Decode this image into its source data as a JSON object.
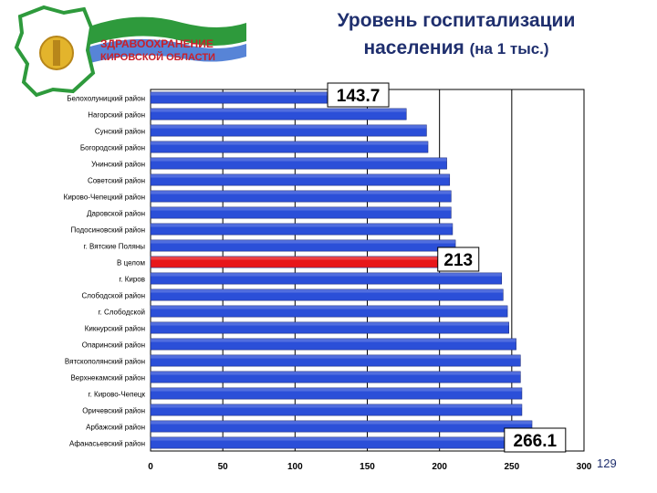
{
  "header": {
    "logo_line1": "ЗДРАВООХРАНЕНИЕ",
    "logo_line2": "КИРОВСКОЙ ОБЛАСТИ",
    "title_line1": "Уровень госпитализации",
    "title_line2": "населения",
    "title_unit": "(на 1 тыс.)"
  },
  "page_number": "129",
  "colors": {
    "bar": "#2b4fd8",
    "highlight": "#e8161a",
    "title": "#1f2f6e"
  },
  "chart_data": {
    "type": "bar",
    "orientation": "horizontal",
    "categories": [
      "Белохолуницкий район",
      "Нагорский район",
      "Сунский район",
      "Богородский район",
      "Унинский район",
      "Советский район",
      "Кирово-Чепецкий район",
      "Даровской район",
      "Подосиновский район",
      "г. Вятские Поляны",
      "В целом",
      "г. Киров",
      "Слободской район",
      "г. Слободской",
      "Кикнурский район",
      "Опаринский район",
      "Вятскополянский район",
      "Верхнекамский район",
      "г. Кирово-Чепецк",
      "Оричевский район",
      "Арбажский район",
      "Афанасьевский район"
    ],
    "values": [
      143.7,
      177,
      191,
      192,
      205,
      207,
      208,
      208,
      209,
      211,
      213,
      243,
      244,
      247,
      248,
      253,
      256,
      256,
      257,
      257,
      264,
      266.1
    ],
    "highlight_category": "В целом",
    "xlim": [
      0,
      300
    ],
    "xticks": [
      0,
      50,
      100,
      150,
      200,
      250,
      300
    ],
    "gridlines": "vertical",
    "data_labels": [
      {
        "category": "Белохолуницкий район",
        "text": "143.7"
      },
      {
        "category": "В целом",
        "text": "213"
      },
      {
        "category": "Афанасьевский район",
        "text": "266.1"
      }
    ]
  }
}
